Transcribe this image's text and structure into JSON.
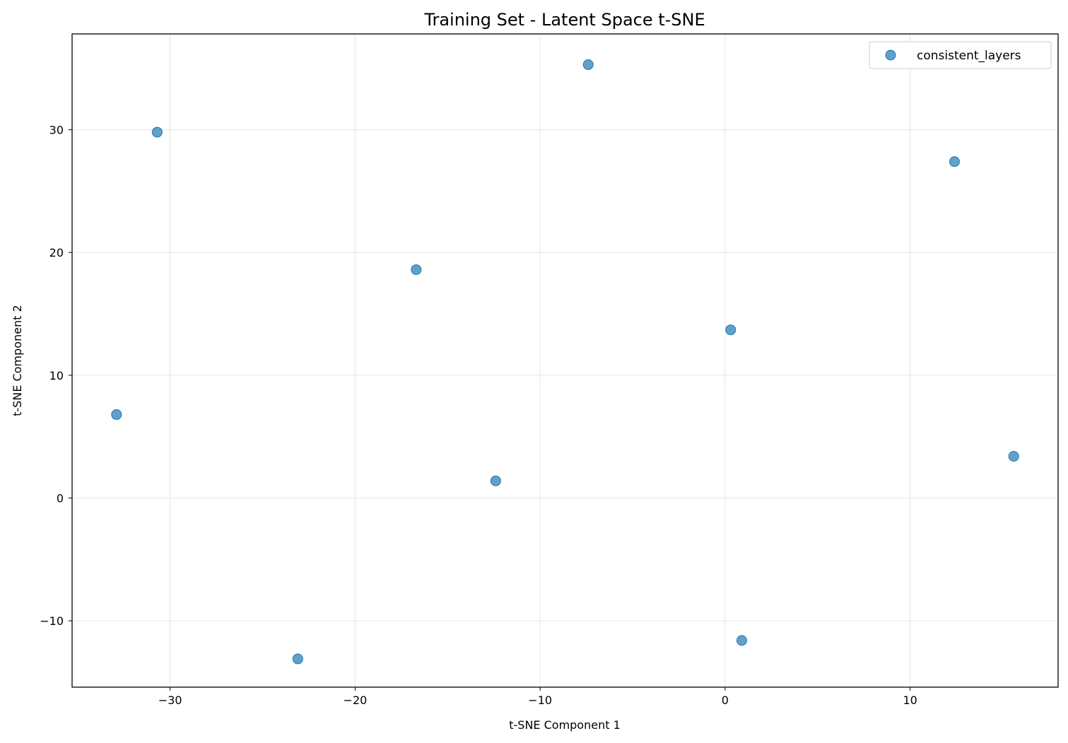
{
  "chart_data": {
    "type": "scatter",
    "title": "Training Set - Latent Space t-SNE",
    "xlabel": "t-SNE Component 1",
    "ylabel": "t-SNE Component 2",
    "xlim": [
      -35.3,
      18.0
    ],
    "ylim": [
      -15.4,
      37.8
    ],
    "xticks": [
      -30,
      -20,
      -10,
      0,
      10
    ],
    "xtick_labels": [
      "−30",
      "−20",
      "−10",
      "0",
      "10"
    ],
    "yticks": [
      -10,
      0,
      10,
      20,
      30
    ],
    "ytick_labels": [
      "−10",
      "0",
      "10",
      "20",
      "30"
    ],
    "grid": true,
    "legend_position": "top-right",
    "series": [
      {
        "name": "consistent_layers",
        "color": "#1f77b4",
        "points": [
          {
            "x": -7.4,
            "y": 35.3
          },
          {
            "x": -30.7,
            "y": 29.8
          },
          {
            "x": 12.4,
            "y": 27.4
          },
          {
            "x": -16.7,
            "y": 18.6
          },
          {
            "x": 0.3,
            "y": 13.7
          },
          {
            "x": -32.9,
            "y": 6.8
          },
          {
            "x": 15.6,
            "y": 3.4
          },
          {
            "x": -12.4,
            "y": 1.4
          },
          {
            "x": 0.9,
            "y": -11.6
          },
          {
            "x": -23.1,
            "y": -13.1
          }
        ]
      }
    ]
  }
}
